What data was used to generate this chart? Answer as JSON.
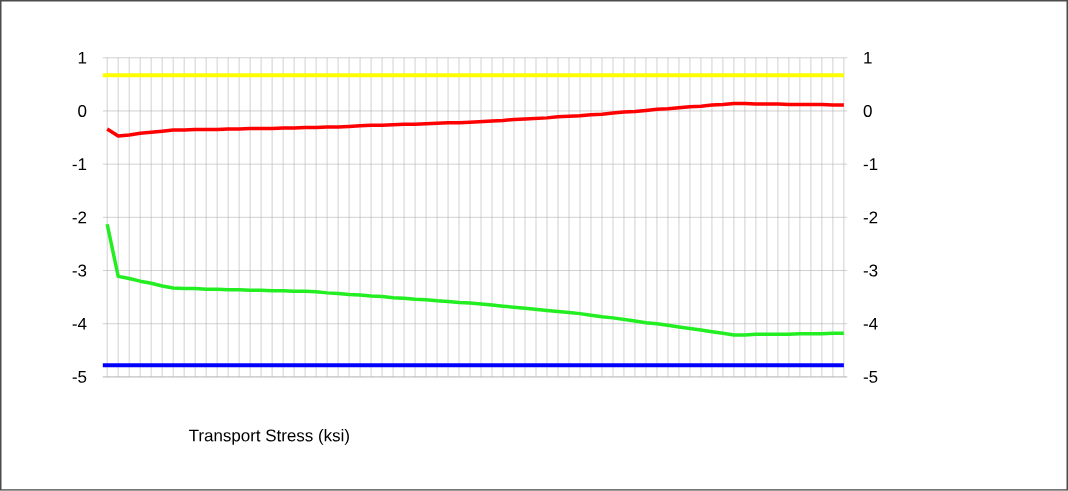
{
  "chart_data": {
    "type": "line",
    "xlabel": "Transport Stress (ksi)",
    "categories": [
      null,
      null,
      null,
      null,
      null,
      null,
      null,
      null,
      null,
      null,
      null,
      null,
      null,
      null,
      null,
      null,
      null,
      null,
      null,
      null,
      null,
      null,
      null,
      null,
      null,
      null,
      null,
      null,
      null,
      null,
      null,
      null,
      null,
      null,
      null,
      null,
      null,
      null,
      null,
      null,
      null,
      null,
      null,
      null,
      null,
      null,
      null,
      null,
      null,
      null,
      null,
      null,
      null,
      null,
      null,
      null,
      null,
      null,
      null,
      null,
      null,
      null,
      null,
      null,
      null,
      null,
      null,
      null
    ],
    "series": [
      {
        "color": "#ff0000",
        "values": [
          -0.34,
          -0.47,
          -0.45,
          -0.42,
          -0.4,
          -0.38,
          -0.36,
          -0.36,
          -0.35,
          -0.35,
          -0.35,
          -0.34,
          -0.34,
          -0.33,
          -0.33,
          -0.33,
          -0.32,
          -0.32,
          -0.31,
          -0.31,
          -0.3,
          -0.3,
          -0.29,
          -0.28,
          -0.27,
          -0.27,
          -0.26,
          -0.25,
          -0.25,
          -0.24,
          -0.23,
          -0.22,
          -0.22,
          -0.21,
          -0.2,
          -0.19,
          -0.18,
          -0.16,
          -0.15,
          -0.14,
          -0.13,
          -0.11,
          -0.1,
          -0.09,
          -0.07,
          -0.06,
          -0.04,
          -0.02,
          -0.01,
          0.01,
          0.03,
          0.04,
          0.06,
          0.08,
          0.09,
          0.11,
          0.12,
          0.14,
          0.14,
          0.13,
          0.13,
          0.13,
          0.12,
          0.12,
          0.12,
          0.12,
          0.11,
          0.11
        ]
      },
      {
        "color": "#22ee22",
        "values": [
          -2.13,
          -3.11,
          -3.15,
          -3.2,
          -3.24,
          -3.29,
          -3.33,
          -3.34,
          -3.34,
          -3.35,
          -3.35,
          -3.36,
          -3.36,
          -3.37,
          -3.37,
          -3.38,
          -3.38,
          -3.39,
          -3.39,
          -3.4,
          -3.42,
          -3.43,
          -3.45,
          -3.46,
          -3.48,
          -3.49,
          -3.51,
          -3.52,
          -3.54,
          -3.55,
          -3.57,
          -3.58,
          -3.6,
          -3.61,
          -3.63,
          -3.65,
          -3.67,
          -3.69,
          -3.71,
          -3.73,
          -3.75,
          -3.77,
          -3.79,
          -3.81,
          -3.84,
          -3.87,
          -3.89,
          -3.92,
          -3.95,
          -3.98,
          -4.0,
          -4.03,
          -4.06,
          -4.09,
          -4.12,
          -4.15,
          -4.18,
          -4.21,
          -4.21,
          -4.2,
          -4.2,
          -4.2,
          -4.2,
          -4.19,
          -4.19,
          -4.19,
          -4.18,
          -4.18
        ]
      }
    ],
    "ref_lines": [
      {
        "axis": "y",
        "value": 0.67,
        "color": "#ffff00"
      },
      {
        "axis": "y",
        "value": -4.78,
        "color": "#0000ff"
      }
    ],
    "ylim": [
      -5,
      1
    ],
    "yticks": [
      -5,
      -4,
      -3,
      -2,
      -1,
      0,
      1
    ],
    "y2lim": [
      -5,
      1
    ],
    "y2ticks": [
      -5,
      -4,
      -3,
      -2,
      -1,
      0,
      1
    ],
    "grid": true,
    "marker": "none",
    "line_style": "solid",
    "tick_labels": "y"
  }
}
